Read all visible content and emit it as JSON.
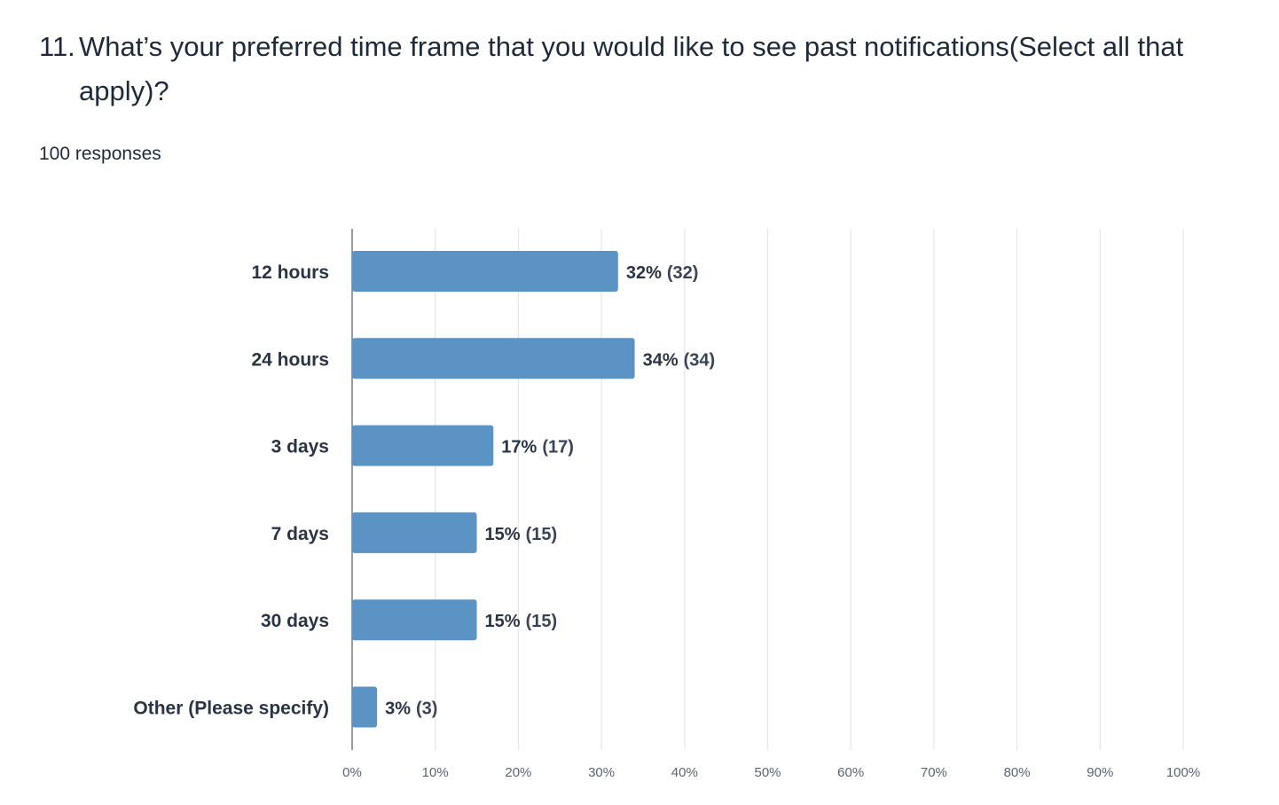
{
  "question": {
    "number": "11.",
    "text": "What’s your preferred time frame that you would like to see past notifications(Select all that apply)?"
  },
  "responses": "100 responses",
  "chart_data": {
    "type": "bar",
    "orientation": "horizontal",
    "categories": [
      "12 hours",
      "24 hours",
      "3 days",
      "7 days",
      "30 days",
      "Other (Please specify)"
    ],
    "values": [
      32,
      34,
      17,
      15,
      15,
      3
    ],
    "counts": [
      32,
      34,
      17,
      15,
      15,
      3
    ],
    "value_labels": [
      "32%",
      "34%",
      "17%",
      "15%",
      "15%",
      "3%"
    ],
    "count_labels": [
      "(32)",
      "(34)",
      "(17)",
      "(15)",
      "(15)",
      "(3)"
    ],
    "xlim": [
      0,
      100
    ],
    "xticks": [
      0,
      10,
      20,
      30,
      40,
      50,
      60,
      70,
      80,
      90,
      100
    ],
    "xtick_labels": [
      "0%",
      "10%",
      "20%",
      "30%",
      "40%",
      "50%",
      "60%",
      "70%",
      "80%",
      "90%",
      "100%"
    ],
    "grid": true,
    "bar_color": "#5b93c4",
    "grid_color": "#e3e5e8",
    "axis_color": "#6b7280"
  }
}
